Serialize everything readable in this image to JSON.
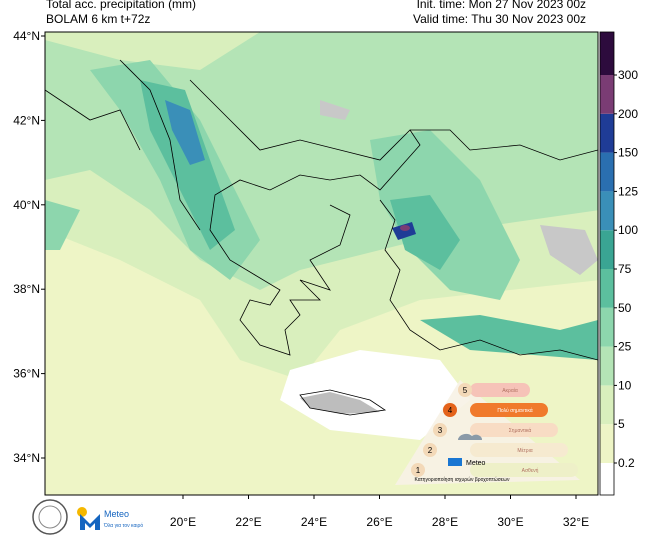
{
  "header": {
    "title": "Total acc. precipitation (mm)",
    "model": "BOLAM 6 km t+72z",
    "init_time": "Init. time: Mon 27 Nov 2023 00z",
    "valid_time": "Valid time: Thu 30 Nov 2023 00z"
  },
  "lat_labels": [
    "44°N",
    "42°N",
    "40°N",
    "38°N",
    "36°N",
    "34°N"
  ],
  "lon_labels": [
    "20°E",
    "22°E",
    "24°E",
    "26°E",
    "28°E",
    "30°E",
    "32°E"
  ],
  "legend": {
    "levels": [
      0.2,
      5,
      10,
      25,
      50,
      75,
      100,
      125,
      150,
      200,
      300
    ],
    "colors": [
      "#ffffff",
      "#eef5c6",
      "#d9efbd",
      "#b4e4b6",
      "#8dd6ad",
      "#5cbf9e",
      "#3aa593",
      "#3a8fb8",
      "#2a6fb0",
      "#1f3c96",
      "#7a3c74",
      "#2d0b3d"
    ]
  },
  "infographic": {
    "levels": [
      "Ακραία",
      "Πολύ σημαντικά",
      "Σημαντικά",
      "Μέτρια",
      "Ασθενή"
    ],
    "numbers": [
      "5",
      "4",
      "3",
      "2",
      "1"
    ],
    "caption": "Κατηγοριοποίηση ισχυρών βροχοπτώσεων",
    "brand": "Meteo"
  },
  "footer": {
    "brand": "Meteo",
    "slogan": "Όλα για τον καιρό"
  }
}
